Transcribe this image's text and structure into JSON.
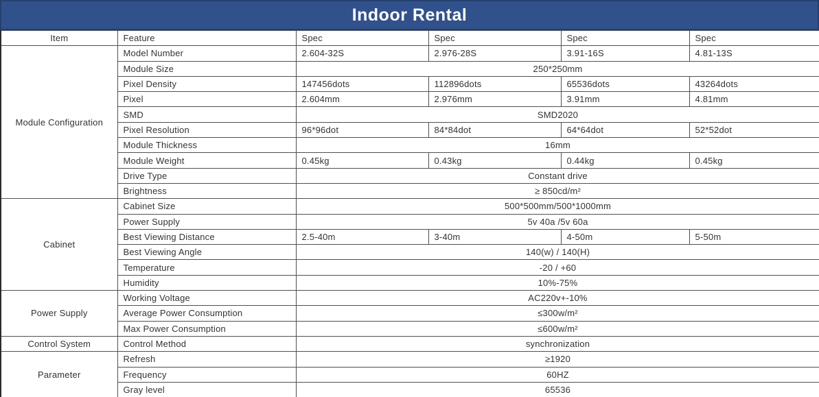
{
  "title": "Indoor Rental",
  "colors": {
    "header_bg": "#31518C",
    "header_border": "#24406F",
    "grid": "#4f4f4f",
    "text": "#333333"
  },
  "columns": [
    "Item",
    "Feature",
    "Spec",
    "Spec",
    "Spec",
    "Spec"
  ],
  "sections": [
    {
      "item": "Module Configuration",
      "rows": [
        {
          "feature": "Model Number",
          "specs": [
            "2.604-32S",
            "2.976-28S",
            "3.91-16S",
            "4.81-13S"
          ]
        },
        {
          "feature": "Module Size",
          "span": "250*250mm"
        },
        {
          "feature": "Pixel Density",
          "specs": [
            "147456dots",
            "112896dots",
            "65536dots",
            "43264dots"
          ]
        },
        {
          "feature": "Pixel",
          "specs": [
            "2.604mm",
            "2.976mm",
            "3.91mm",
            "4.81mm"
          ]
        },
        {
          "feature": "SMD",
          "span": "SMD2020"
        },
        {
          "feature": "Pixel Resolution",
          "specs": [
            "96*96dot",
            "84*84dot",
            "64*64dot",
            "52*52dot"
          ]
        },
        {
          "feature": "Module Thickness",
          "span": "16mm"
        },
        {
          "feature": "Module Weight",
          "specs": [
            "0.45kg",
            "0.43kg",
            "0.44kg",
            "0.45kg"
          ]
        },
        {
          "feature": "Drive Type",
          "span": "Constant drive"
        },
        {
          "feature": "Brightness",
          "span": "≥ 850cd/m²"
        }
      ]
    },
    {
      "item": "Cabinet",
      "rows": [
        {
          "feature": "Cabinet Size",
          "span": "500*500mm/500*1000mm"
        },
        {
          "feature": "Power Supply",
          "span": "5v 40a /5v 60a"
        },
        {
          "feature": "Best Viewing Distance",
          "specs": [
            "2.5-40m",
            "3-40m",
            "4-50m",
            "5-50m"
          ]
        },
        {
          "feature": "Best Viewing Angle",
          "span": "140(w) / 140(H)"
        },
        {
          "feature": "Temperature",
          "span": "-20 / +60"
        },
        {
          "feature": "Humidity",
          "span": "10%-75%"
        }
      ]
    },
    {
      "item": "Power Supply",
      "rows": [
        {
          "feature": "Working Voltage",
          "span": "AC220v+-10%"
        },
        {
          "feature": "Average Power Consumption",
          "span": "≤300w/m²"
        },
        {
          "feature": "Max Power Consumption",
          "span": "≤600w/m²"
        }
      ]
    },
    {
      "item": "Control System",
      "rows": [
        {
          "feature": "Control Method",
          "span": "synchronization"
        }
      ]
    },
    {
      "item": "Parameter",
      "rows": [
        {
          "feature": "Refresh",
          "span": "≥1920"
        },
        {
          "feature": "Frequency",
          "span": "60HZ"
        },
        {
          "feature": "Gray level",
          "span": "65536"
        }
      ]
    }
  ]
}
